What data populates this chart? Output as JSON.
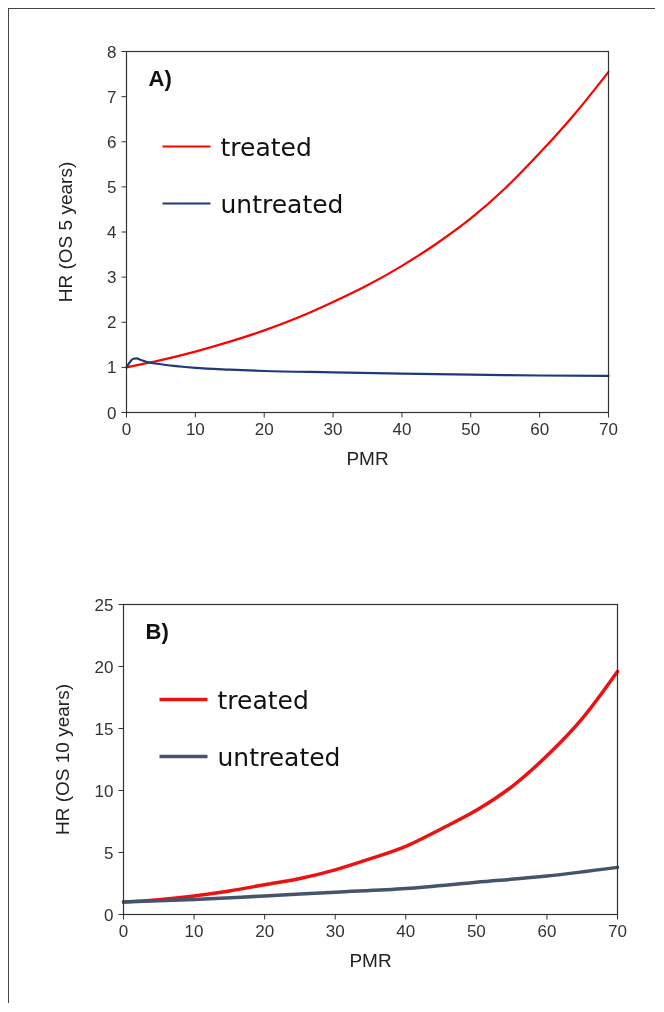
{
  "chart_data": [
    {
      "type": "line",
      "title": "A)",
      "xlabel": "PMR",
      "ylabel": "HR (OS 5 years)",
      "xlim": [
        0,
        70
      ],
      "xticks": [
        0,
        10,
        20,
        30,
        40,
        50,
        60,
        70
      ],
      "ylim": [
        0,
        8
      ],
      "yticks": [
        0,
        1,
        2,
        3,
        4,
        5,
        6,
        7,
        8
      ],
      "grid": false,
      "legend": "top left",
      "marker": "none",
      "line_style": "solid",
      "series": [
        {
          "name": "treated",
          "color": "#ff0000",
          "x": [
            0,
            5,
            10,
            15,
            20,
            25,
            30,
            35,
            40,
            45,
            50,
            55,
            60,
            65,
            70
          ],
          "values": [
            1.0,
            1.16,
            1.35,
            1.57,
            1.82,
            2.11,
            2.45,
            2.82,
            3.25,
            3.74,
            4.3,
            4.97,
            5.75,
            6.6,
            7.55
          ]
        },
        {
          "name": "untreated",
          "color": "#1f3a7a",
          "x": [
            0,
            0.5,
            1,
            1.5,
            2,
            3,
            5,
            10,
            15,
            20,
            30,
            40,
            50,
            60,
            70
          ],
          "values": [
            1.0,
            1.12,
            1.19,
            1.2,
            1.17,
            1.12,
            1.07,
            0.99,
            0.95,
            0.92,
            0.89,
            0.86,
            0.84,
            0.82,
            0.81
          ]
        }
      ]
    },
    {
      "type": "line",
      "title": "B)",
      "xlabel": "PMR",
      "ylabel": "HR (OS 10 years)",
      "xlim": [
        0,
        70
      ],
      "xticks": [
        0,
        10,
        20,
        30,
        40,
        50,
        60,
        70
      ],
      "ylim": [
        0,
        25
      ],
      "yticks": [
        0,
        5,
        10,
        15,
        20,
        25
      ],
      "grid": false,
      "legend": "top left",
      "marker": "none",
      "line_style": "solid",
      "series": [
        {
          "name": "treated",
          "color": "#ee1111",
          "x": [
            0,
            5,
            10,
            15,
            20,
            25,
            30,
            35,
            40,
            45,
            50,
            55,
            60,
            65,
            70
          ],
          "values": [
            1.0,
            1.2,
            1.5,
            1.9,
            2.4,
            2.9,
            3.6,
            4.5,
            5.5,
            6.9,
            8.4,
            10.3,
            12.8,
            15.8,
            19.6
          ]
        },
        {
          "name": "untreated",
          "color": "#44546a",
          "x": [
            0,
            10,
            20,
            30,
            40,
            50,
            60,
            70
          ],
          "values": [
            1.0,
            1.2,
            1.5,
            1.8,
            2.1,
            2.6,
            3.1,
            3.8
          ]
        }
      ]
    }
  ]
}
